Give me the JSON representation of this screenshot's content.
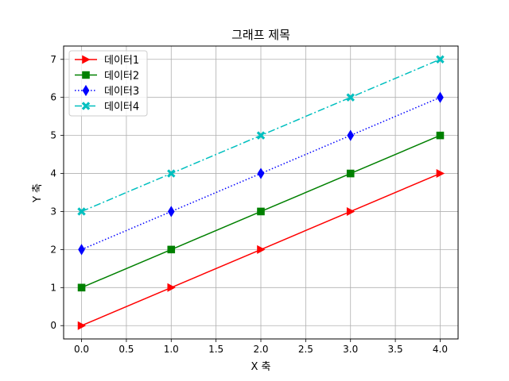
{
  "chart_data": {
    "type": "line",
    "title": "그래프 제목",
    "xlabel": "X 축",
    "ylabel": "Y 축",
    "x": [
      0,
      1,
      2,
      3,
      4
    ],
    "xlim": [
      -0.2,
      4.2
    ],
    "ylim": [
      -0.35,
      7.35
    ],
    "xticks": [
      "0.0",
      "0.5",
      "1.0",
      "1.5",
      "2.0",
      "2.5",
      "3.0",
      "3.5",
      "4.0"
    ],
    "yticks": [
      "0",
      "1",
      "2",
      "3",
      "4",
      "5",
      "6",
      "7"
    ],
    "grid": true,
    "legend_position": "top-left",
    "series": [
      {
        "name": "데이터1",
        "values": [
          0,
          1,
          2,
          3,
          4
        ],
        "color": "#ff0000",
        "linestyle": "solid",
        "marker": "triangle-right"
      },
      {
        "name": "데이터2",
        "values": [
          1,
          2,
          3,
          4,
          5
        ],
        "color": "#008000",
        "linestyle": "solid",
        "marker": "square"
      },
      {
        "name": "데이터3",
        "values": [
          2,
          3,
          4,
          5,
          6
        ],
        "color": "#0000ff",
        "linestyle": "dotted",
        "marker": "diamond"
      },
      {
        "name": "데이터4",
        "values": [
          3,
          4,
          5,
          6,
          7
        ],
        "color": "#00bfbf",
        "linestyle": "dashdot",
        "marker": "x-filled"
      }
    ]
  }
}
